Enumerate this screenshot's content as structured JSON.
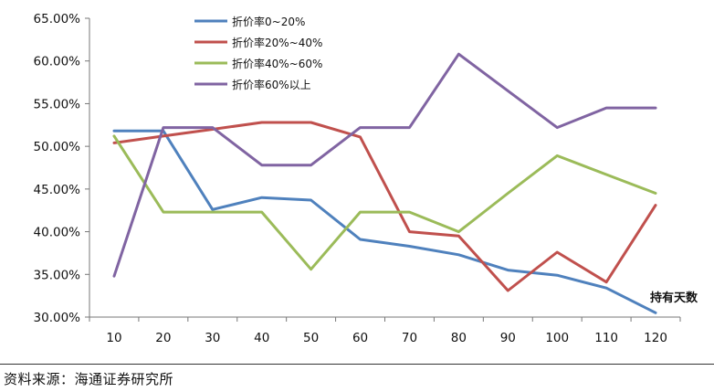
{
  "chart_data": {
    "type": "line",
    "x": [
      10,
      20,
      30,
      40,
      50,
      60,
      70,
      80,
      90,
      100,
      110,
      120
    ],
    "ylim": [
      0.3,
      0.65
    ],
    "yticks": [
      "30.00%",
      "35.00%",
      "40.00%",
      "45.00%",
      "50.00%",
      "55.00%",
      "60.00%",
      "65.00%"
    ],
    "xticks": [
      "10",
      "20",
      "30",
      "40",
      "50",
      "60",
      "70",
      "80",
      "90",
      "100",
      "110",
      "120"
    ],
    "xlabel": "持有天数",
    "ylabel": "",
    "grid": false,
    "legend_position": "top-center",
    "series": [
      {
        "name": "折价率0~20%",
        "color": "#4f81bd",
        "values": [
          0.518,
          0.518,
          0.426,
          0.44,
          0.437,
          0.391,
          0.383,
          0.373,
          0.355,
          0.349,
          0.334,
          0.305
        ]
      },
      {
        "name": "折价率20%~40%",
        "color": "#c0504d",
        "values": [
          0.504,
          0.512,
          0.52,
          0.528,
          0.528,
          0.511,
          0.4,
          0.395,
          0.331,
          0.376,
          0.341,
          0.431
        ]
      },
      {
        "name": "折价率40%~60%",
        "color": "#9bbb59",
        "values": [
          0.512,
          0.423,
          0.423,
          0.423,
          0.356,
          0.423,
          0.423,
          0.4,
          0.445,
          0.489,
          0.467,
          0.445
        ]
      },
      {
        "name": "折价率60%以上",
        "color": "#8064a2",
        "values": [
          0.348,
          0.522,
          0.522,
          0.478,
          0.478,
          0.522,
          0.522,
          0.608,
          0.565,
          0.522,
          0.545,
          0.545
        ]
      }
    ]
  },
  "footer": {
    "source": "资料来源：海通证券研究所"
  }
}
